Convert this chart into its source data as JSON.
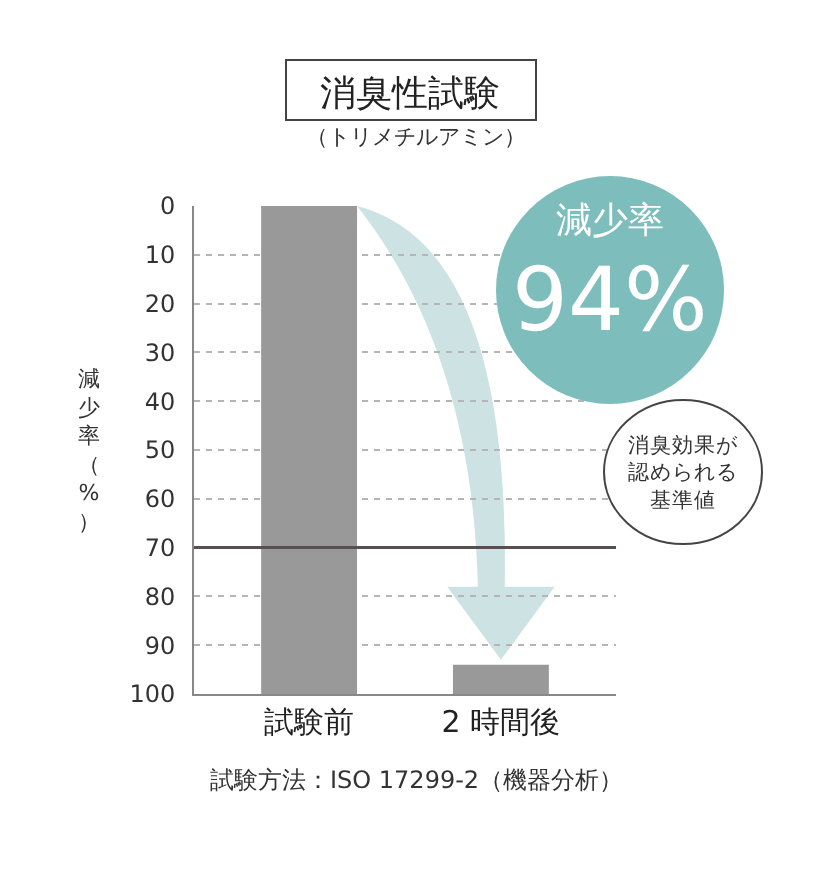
{
  "chart_data": {
    "type": "bar",
    "title": "消臭性試験",
    "subtitle": "（トリメチルアミン）",
    "ylabel": "減少率（%）",
    "categories": [
      "試験前",
      "2 時間後"
    ],
    "base": [
      100,
      100
    ],
    "values": [
      -100,
      -6
    ],
    "color": "#999999",
    "ylim": [
      100,
      0
    ],
    "yticks": [
      0,
      10,
      20,
      30,
      40,
      50,
      60,
      70,
      80,
      90,
      100
    ],
    "grid": "y",
    "ref_lines": [
      {
        "axis": "y",
        "value": 70,
        "label": "消臭効果が認められる基準値",
        "color": "#5a4f4f",
        "line_style": "solid"
      }
    ],
    "annotations": [
      "減少率",
      "94%",
      "試験方法：ISO 17299-2（機器分析）"
    ]
  }
}
